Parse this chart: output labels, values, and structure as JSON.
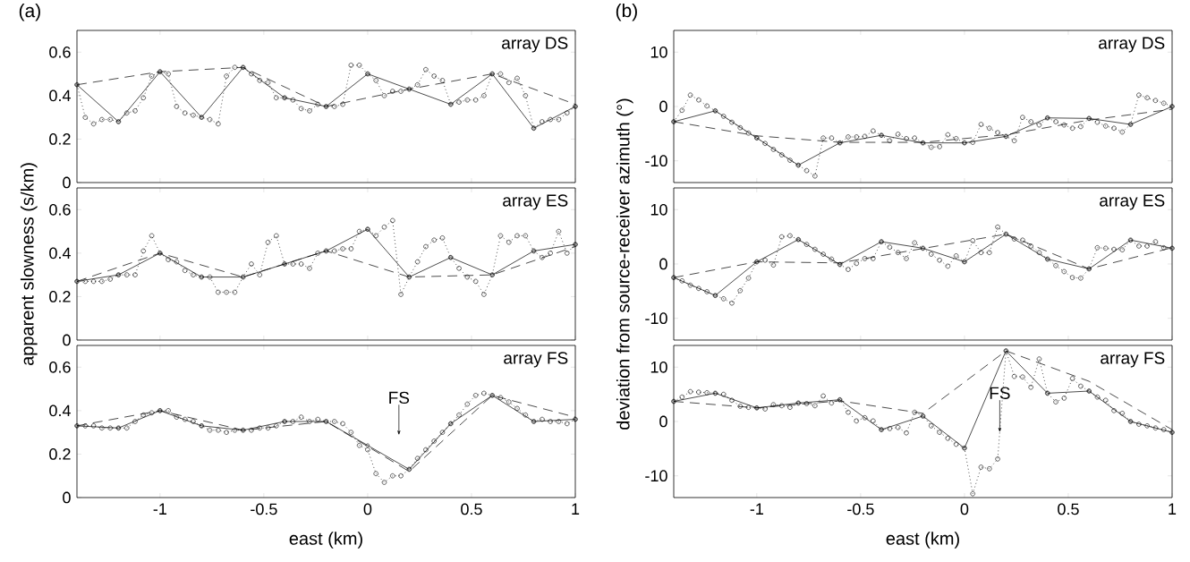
{
  "chart_data": [
    {
      "type": "line",
      "title": "(a)",
      "annotations": [
        "array DS"
      ],
      "xlim": [
        -1.4,
        1
      ],
      "xticks": [
        -1,
        -0.5,
        0,
        0.5,
        1
      ],
      "ylim": [
        0,
        0.7
      ],
      "yticks": [
        0,
        0.2,
        0.4,
        0.6
      ],
      "tick_labels": "y",
      "series": [
        {
          "color": "#000000",
          "line_style": "dotted",
          "marker": "circle",
          "x": [
            -1.4,
            -1.36,
            -1.32,
            -1.28,
            -1.24,
            -1.2,
            -1.16,
            -1.12,
            -1.08,
            -1.04,
            -1,
            -0.96,
            -0.92,
            -0.88,
            -0.84,
            -0.8,
            -0.76,
            -0.72,
            -0.68,
            -0.64,
            -0.6,
            -0.56,
            -0.52,
            -0.48,
            -0.44,
            -0.4,
            -0.36,
            -0.32,
            -0.28,
            -0.24,
            -0.2,
            -0.16,
            -0.12,
            -0.08,
            -0.04,
            0,
            0.04,
            0.08,
            0.12,
            0.16,
            0.2,
            0.24,
            0.28,
            0.32,
            0.36,
            0.4,
            0.44,
            0.48,
            0.52,
            0.56,
            0.6,
            0.64,
            0.68,
            0.72,
            0.76,
            0.8,
            0.84,
            0.88,
            0.92,
            0.96,
            1
          ],
          "values": [
            0.45,
            0.3,
            0.27,
            0.29,
            0.29,
            0.28,
            0.32,
            0.33,
            0.39,
            0.49,
            0.51,
            0.5,
            0.35,
            0.32,
            0.31,
            0.3,
            0.29,
            0.27,
            0.49,
            0.53,
            0.53,
            0.5,
            0.47,
            0.46,
            0.39,
            0.39,
            0.38,
            0.34,
            0.33,
            0.36,
            0.35,
            0.35,
            0.36,
            0.54,
            0.54,
            0.5,
            0.47,
            0.4,
            0.42,
            0.42,
            0.43,
            0.45,
            0.52,
            0.49,
            0.47,
            0.36,
            0.37,
            0.38,
            0.38,
            0.4,
            0.5,
            0.5,
            0.46,
            0.48,
            0.4,
            0.25,
            0.28,
            0.29,
            0.29,
            0.32,
            0.35
          ]
        },
        {
          "color": "#000000",
          "line_style": "solid",
          "marker": "circle",
          "x": [
            -1.4,
            -1.2,
            -1,
            -0.8,
            -0.6,
            -0.4,
            -0.2,
            0,
            0.2,
            0.4,
            0.6,
            0.8,
            1
          ],
          "values": [
            0.45,
            0.28,
            0.51,
            0.3,
            0.53,
            0.39,
            0.35,
            0.5,
            0.43,
            0.36,
            0.5,
            0.25,
            0.35
          ]
        },
        {
          "color": "#000000",
          "line_style": "dashed",
          "marker": "none",
          "x": [
            -1.4,
            -1,
            -0.6,
            -0.2,
            0.2,
            0.6,
            1
          ],
          "values": [
            0.45,
            0.51,
            0.53,
            0.35,
            0.43,
            0.5,
            0.36
          ]
        }
      ]
    },
    {
      "type": "line",
      "ylabel": "apparent slowness (s/km)",
      "annotations": [
        "array ES"
      ],
      "xlim": [
        -1.4,
        1
      ],
      "xticks": [
        -1,
        -0.5,
        0,
        0.5,
        1
      ],
      "ylim": [
        0,
        0.7
      ],
      "yticks": [
        0,
        0.2,
        0.4,
        0.6
      ],
      "tick_labels": "y",
      "series": [
        {
          "color": "#000000",
          "line_style": "dotted",
          "marker": "circle",
          "x": [
            -1.4,
            -1.36,
            -1.32,
            -1.28,
            -1.24,
            -1.2,
            -1.16,
            -1.12,
            -1.08,
            -1.04,
            -1,
            -0.96,
            -0.92,
            -0.88,
            -0.84,
            -0.8,
            -0.76,
            -0.72,
            -0.68,
            -0.64,
            -0.6,
            -0.56,
            -0.52,
            -0.48,
            -0.44,
            -0.4,
            -0.36,
            -0.32,
            -0.28,
            -0.24,
            -0.2,
            -0.16,
            -0.12,
            -0.08,
            -0.04,
            0,
            0.04,
            0.08,
            0.12,
            0.16,
            0.2,
            0.24,
            0.28,
            0.32,
            0.36,
            0.4,
            0.44,
            0.48,
            0.52,
            0.56,
            0.6,
            0.64,
            0.68,
            0.72,
            0.76,
            0.8,
            0.84,
            0.88,
            0.92,
            0.96,
            1
          ],
          "values": [
            0.27,
            0.27,
            0.27,
            0.27,
            0.28,
            0.3,
            0.3,
            0.3,
            0.41,
            0.48,
            0.4,
            0.37,
            0.36,
            0.32,
            0.3,
            0.29,
            0.29,
            0.22,
            0.22,
            0.22,
            0.29,
            0.35,
            0.3,
            0.45,
            0.48,
            0.35,
            0.35,
            0.35,
            0.33,
            0.4,
            0.41,
            0.41,
            0.42,
            0.42,
            0.5,
            0.51,
            0.48,
            0.52,
            0.55,
            0.21,
            0.29,
            0.36,
            0.43,
            0.46,
            0.47,
            0.38,
            0.33,
            0.29,
            0.27,
            0.21,
            0.3,
            0.48,
            0.45,
            0.48,
            0.48,
            0.41,
            0.38,
            0.4,
            0.5,
            0.4,
            0.44
          ]
        },
        {
          "color": "#000000",
          "line_style": "solid",
          "marker": "circle",
          "x": [
            -1.4,
            -1.2,
            -1,
            -0.8,
            -0.6,
            -0.4,
            -0.2,
            0,
            0.2,
            0.4,
            0.6,
            0.8,
            1
          ],
          "values": [
            0.27,
            0.3,
            0.4,
            0.29,
            0.29,
            0.35,
            0.41,
            0.51,
            0.29,
            0.38,
            0.3,
            0.41,
            0.44
          ]
        },
        {
          "color": "#000000",
          "line_style": "dashed",
          "marker": "none",
          "x": [
            -1.4,
            -1,
            -0.6,
            -0.2,
            0.2,
            0.6,
            1
          ],
          "values": [
            0.27,
            0.4,
            0.29,
            0.41,
            0.29,
            0.3,
            0.43
          ]
        }
      ]
    },
    {
      "type": "line",
      "xlabel": "east (km)",
      "annotations": [
        "array FS",
        "FS"
      ],
      "xlim": [
        -1.4,
        1
      ],
      "xticks": [
        -1,
        -0.5,
        0,
        0.5,
        1
      ],
      "ylim": [
        0,
        0.7
      ],
      "yticks": [
        0,
        0.2,
        0.4,
        0.6
      ],
      "series": [
        {
          "color": "#000000",
          "line_style": "dotted",
          "marker": "circle",
          "x": [
            -1.4,
            -1.36,
            -1.32,
            -1.28,
            -1.24,
            -1.2,
            -1.16,
            -1.12,
            -1.08,
            -1.04,
            -1,
            -0.96,
            -0.92,
            -0.88,
            -0.84,
            -0.8,
            -0.76,
            -0.72,
            -0.68,
            -0.64,
            -0.6,
            -0.56,
            -0.52,
            -0.48,
            -0.44,
            -0.4,
            -0.36,
            -0.32,
            -0.28,
            -0.24,
            -0.2,
            -0.16,
            -0.12,
            -0.08,
            -0.04,
            0,
            0.04,
            0.08,
            0.12,
            0.16,
            0.2,
            0.24,
            0.28,
            0.32,
            0.36,
            0.4,
            0.44,
            0.48,
            0.52,
            0.56,
            0.6,
            0.64,
            0.68,
            0.72,
            0.76,
            0.8,
            0.84,
            0.88,
            0.92,
            0.96,
            1
          ],
          "values": [
            0.33,
            0.33,
            0.33,
            0.32,
            0.32,
            0.32,
            0.32,
            0.35,
            0.38,
            0.39,
            0.4,
            0.4,
            0.37,
            0.36,
            0.35,
            0.33,
            0.31,
            0.31,
            0.3,
            0.31,
            0.31,
            0.31,
            0.32,
            0.32,
            0.33,
            0.35,
            0.35,
            0.37,
            0.35,
            0.36,
            0.35,
            0.35,
            0.34,
            0.3,
            0.24,
            0.22,
            0.11,
            0.07,
            0.1,
            0.1,
            0.13,
            0.18,
            0.22,
            0.26,
            0.3,
            0.34,
            0.38,
            0.43,
            0.47,
            0.48,
            0.47,
            0.46,
            0.44,
            0.41,
            0.38,
            0.35,
            0.36,
            0.35,
            0.35,
            0.34,
            0.36
          ]
        },
        {
          "color": "#000000",
          "line_style": "solid",
          "marker": "circle",
          "x": [
            -1.4,
            -1.2,
            -1,
            -0.8,
            -0.6,
            -0.4,
            -0.2,
            0,
            0.2,
            0.4,
            0.6,
            0.8,
            1
          ],
          "values": [
            0.33,
            0.32,
            0.4,
            0.33,
            0.31,
            0.35,
            0.35,
            0.24,
            0.13,
            0.34,
            0.47,
            0.35,
            0.36
          ]
        },
        {
          "color": "#000000",
          "line_style": "dashed",
          "marker": "none",
          "x": [
            -1.4,
            -1,
            -0.6,
            -0.2,
            0.2,
            0.6,
            1
          ],
          "values": [
            0.33,
            0.4,
            0.31,
            0.35,
            0.12,
            0.47,
            0.37
          ]
        }
      ]
    },
    {
      "type": "line",
      "title": "(b)",
      "annotations": [
        "array DS"
      ],
      "xlim": [
        -1.4,
        1
      ],
      "xticks": [
        -1,
        -0.5,
        0,
        0.5,
        1
      ],
      "ylim": [
        -14,
        14
      ],
      "yticks": [
        -10,
        0,
        10
      ],
      "tick_labels": "y",
      "series": [
        {
          "color": "#000000",
          "line_style": "dotted",
          "marker": "circle",
          "x": [
            -1.4,
            -1.36,
            -1.32,
            -1.28,
            -1.24,
            -1.2,
            -1.16,
            -1.12,
            -1.08,
            -1.04,
            -1,
            -0.96,
            -0.92,
            -0.88,
            -0.84,
            -0.8,
            -0.76,
            -0.72,
            -0.68,
            -0.64,
            -0.6,
            -0.56,
            -0.52,
            -0.48,
            -0.44,
            -0.4,
            -0.36,
            -0.32,
            -0.28,
            -0.24,
            -0.2,
            -0.16,
            -0.12,
            -0.08,
            -0.04,
            0,
            0.04,
            0.08,
            0.12,
            0.16,
            0.2,
            0.24,
            0.28,
            0.32,
            0.36,
            0.4,
            0.44,
            0.48,
            0.52,
            0.56,
            0.6,
            0.64,
            0.68,
            0.72,
            0.76,
            0.8,
            0.84,
            0.88,
            0.92,
            0.96,
            1
          ],
          "values": [
            -2.8,
            -0.7,
            2.1,
            1.2,
            0.1,
            -0.8,
            -1.8,
            -2.9,
            -3.9,
            -4.9,
            -5.8,
            -6.8,
            -7.9,
            -8.9,
            -9.9,
            -10.8,
            -11.8,
            -12.8,
            -5.8,
            -5.8,
            -6.7,
            -5.6,
            -5.6,
            -5.5,
            -4.5,
            -5.3,
            -6.3,
            -5.1,
            -5.9,
            -5.8,
            -6.7,
            -7.5,
            -7.4,
            -5.2,
            -5.9,
            -6.7,
            -6.6,
            -3.3,
            -4.0,
            -4.8,
            -5.5,
            -6.3,
            -2.0,
            -2.8,
            -3.4,
            -2.1,
            -2.8,
            -3.4,
            -4.0,
            -3.7,
            -2.2,
            -2.9,
            -3.6,
            -4.0,
            -4.7,
            -3.3,
            2.1,
            1.6,
            1.1,
            0.6,
            0.0
          ]
        },
        {
          "color": "#000000",
          "line_style": "solid",
          "marker": "circle",
          "x": [
            -1.4,
            -1.2,
            -1,
            -0.8,
            -0.6,
            -0.4,
            -0.2,
            0,
            0.2,
            0.4,
            0.6,
            0.8,
            1
          ],
          "values": [
            -2.8,
            -0.8,
            -5.8,
            -10.8,
            -6.7,
            -5.3,
            -6.7,
            -6.7,
            -5.5,
            -2.1,
            -2.2,
            -3.3,
            0.0
          ]
        },
        {
          "color": "#000000",
          "line_style": "dashed",
          "marker": "none",
          "x": [
            -1.4,
            -1,
            -0.6,
            -0.2,
            0.2,
            0.6,
            1
          ],
          "values": [
            -2.8,
            -5.4,
            -6.6,
            -6.6,
            -5.2,
            -2.5,
            -0.5
          ]
        }
      ]
    },
    {
      "type": "line",
      "ylabel": "deviation from source-receiver azimuth (°)",
      "annotations": [
        "array ES"
      ],
      "xlim": [
        -1.4,
        1
      ],
      "xticks": [
        -1,
        -0.5,
        0,
        0.5,
        1
      ],
      "ylim": [
        -14,
        14
      ],
      "yticks": [
        -10,
        0,
        10
      ],
      "tick_labels": "y",
      "series": [
        {
          "color": "#000000",
          "line_style": "dotted",
          "marker": "circle",
          "x": [
            -1.4,
            -1.36,
            -1.32,
            -1.28,
            -1.24,
            -1.2,
            -1.16,
            -1.12,
            -1.08,
            -1.04,
            -1,
            -0.96,
            -0.92,
            -0.88,
            -0.84,
            -0.8,
            -0.76,
            -0.72,
            -0.68,
            -0.64,
            -0.6,
            -0.56,
            -0.52,
            -0.48,
            -0.44,
            -0.4,
            -0.36,
            -0.32,
            -0.28,
            -0.24,
            -0.2,
            -0.16,
            -0.12,
            -0.08,
            -0.04,
            0,
            0.04,
            0.08,
            0.12,
            0.16,
            0.2,
            0.24,
            0.28,
            0.32,
            0.36,
            0.4,
            0.44,
            0.48,
            0.52,
            0.56,
            0.6,
            0.64,
            0.68,
            0.72,
            0.76,
            0.8,
            0.84,
            0.88,
            0.92,
            0.96,
            1
          ],
          "values": [
            -2.5,
            -3.1,
            -3.9,
            -4.5,
            -5.1,
            -5.8,
            -6.4,
            -7.2,
            -4.9,
            -2.6,
            0.4,
            0.7,
            -0.2,
            5.0,
            5.2,
            4.5,
            3.6,
            2.7,
            1.8,
            0.9,
            -0.1,
            -1.0,
            0.1,
            1.0,
            1.0,
            4.1,
            3.1,
            2.1,
            1.0,
            3.9,
            2.9,
            1.8,
            0.7,
            -0.4,
            1.5,
            0.4,
            4.3,
            2.1,
            2.1,
            6.8,
            5.5,
            4.6,
            4.4,
            3.3,
            2.1,
            0.9,
            -0.3,
            -1.4,
            -2.5,
            -2.6,
            -0.9,
            3.0,
            2.9,
            2.7,
            2.6,
            4.4,
            3.3,
            3.3,
            4.1,
            3.0,
            2.9
          ]
        },
        {
          "color": "#000000",
          "line_style": "solid",
          "marker": "circle",
          "x": [
            -1.4,
            -1.2,
            -1,
            -0.8,
            -0.6,
            -0.4,
            -0.2,
            0,
            0.2,
            0.4,
            0.6,
            0.8,
            1
          ],
          "values": [
            -2.5,
            -5.8,
            0.4,
            4.5,
            -0.1,
            4.1,
            2.9,
            0.4,
            5.5,
            0.9,
            -0.9,
            4.4,
            2.9
          ]
        },
        {
          "color": "#000000",
          "line_style": "dashed",
          "marker": "none",
          "x": [
            -1.4,
            -1,
            -0.6,
            0.2,
            0.6,
            1
          ],
          "values": [
            -2.5,
            0.4,
            0.2,
            5.5,
            -0.9,
            3.0
          ]
        }
      ]
    },
    {
      "type": "line",
      "xlabel": "east (km)",
      "annotations": [
        "array FS",
        {
          "text": "FS",
          "x": 0.17,
          "y": -2
        }
      ],
      "xlim": [
        -1.4,
        1
      ],
      "xticks": [
        -1,
        -0.5,
        0,
        0.5,
        1
      ],
      "ylim": [
        -14,
        14
      ],
      "yticks": [
        -10,
        0,
        10
      ],
      "series": [
        {
          "color": "#000000",
          "line_style": "dotted",
          "marker": "circle",
          "x": [
            -1.4,
            -1.36,
            -1.32,
            -1.28,
            -1.24,
            -1.2,
            -1.16,
            -1.12,
            -1.08,
            -1.04,
            -1,
            -0.96,
            -0.92,
            -0.88,
            -0.84,
            -0.8,
            -0.76,
            -0.72,
            -0.68,
            -0.64,
            -0.6,
            -0.56,
            -0.52,
            -0.48,
            -0.44,
            -0.4,
            -0.36,
            -0.32,
            -0.28,
            -0.24,
            -0.2,
            -0.16,
            -0.12,
            -0.08,
            -0.04,
            0,
            0.04,
            0.08,
            0.12,
            0.16,
            0.2,
            0.24,
            0.28,
            0.32,
            0.36,
            0.4,
            0.44,
            0.48,
            0.52,
            0.56,
            0.6,
            0.64,
            0.68,
            0.72,
            0.76,
            0.8,
            0.84,
            0.88,
            0.92,
            0.96,
            1
          ],
          "values": [
            3.7,
            4.5,
            5.5,
            5.4,
            5.3,
            5.2,
            5.0,
            3.9,
            2.8,
            2.6,
            2.5,
            2.3,
            3.1,
            2.9,
            2.6,
            3.4,
            3.3,
            2.9,
            4.7,
            3.4,
            4.0,
            1.7,
            0.1,
            0.7,
            0.1,
            -1.5,
            -1.3,
            -1.1,
            -2.1,
            1.7,
            1.0,
            -0.8,
            -2.0,
            -3.1,
            -4.2,
            -4.9,
            -13.3,
            -8.4,
            -8.7,
            -6.9,
            13.0,
            8.3,
            8.2,
            6.3,
            11.5,
            5.2,
            3.6,
            4.3,
            7.9,
            6.5,
            5.6,
            4.5,
            3.9,
            2.0,
            1.5,
            0.0,
            -0.5,
            -0.8,
            -1.2,
            -1.5,
            -2.0
          ]
        },
        {
          "color": "#000000",
          "line_style": "solid",
          "marker": "circle",
          "x": [
            -1.4,
            -1.2,
            -1,
            -0.8,
            -0.6,
            -0.4,
            -0.2,
            0,
            0.2,
            0.4,
            0.6,
            0.8,
            1
          ],
          "values": [
            3.7,
            5.2,
            2.5,
            3.4,
            4.0,
            -1.5,
            1.0,
            -4.9,
            13.0,
            5.2,
            5.6,
            0.0,
            -2.0
          ]
        },
        {
          "color": "#000000",
          "line_style": "dashed",
          "marker": "none",
          "x": [
            -1.4,
            -1,
            -0.6,
            -0.2,
            0.2,
            0.6,
            1
          ],
          "values": [
            3.7,
            2.5,
            3.8,
            1.5,
            13.0,
            7.4,
            -1.5
          ]
        }
      ]
    }
  ]
}
